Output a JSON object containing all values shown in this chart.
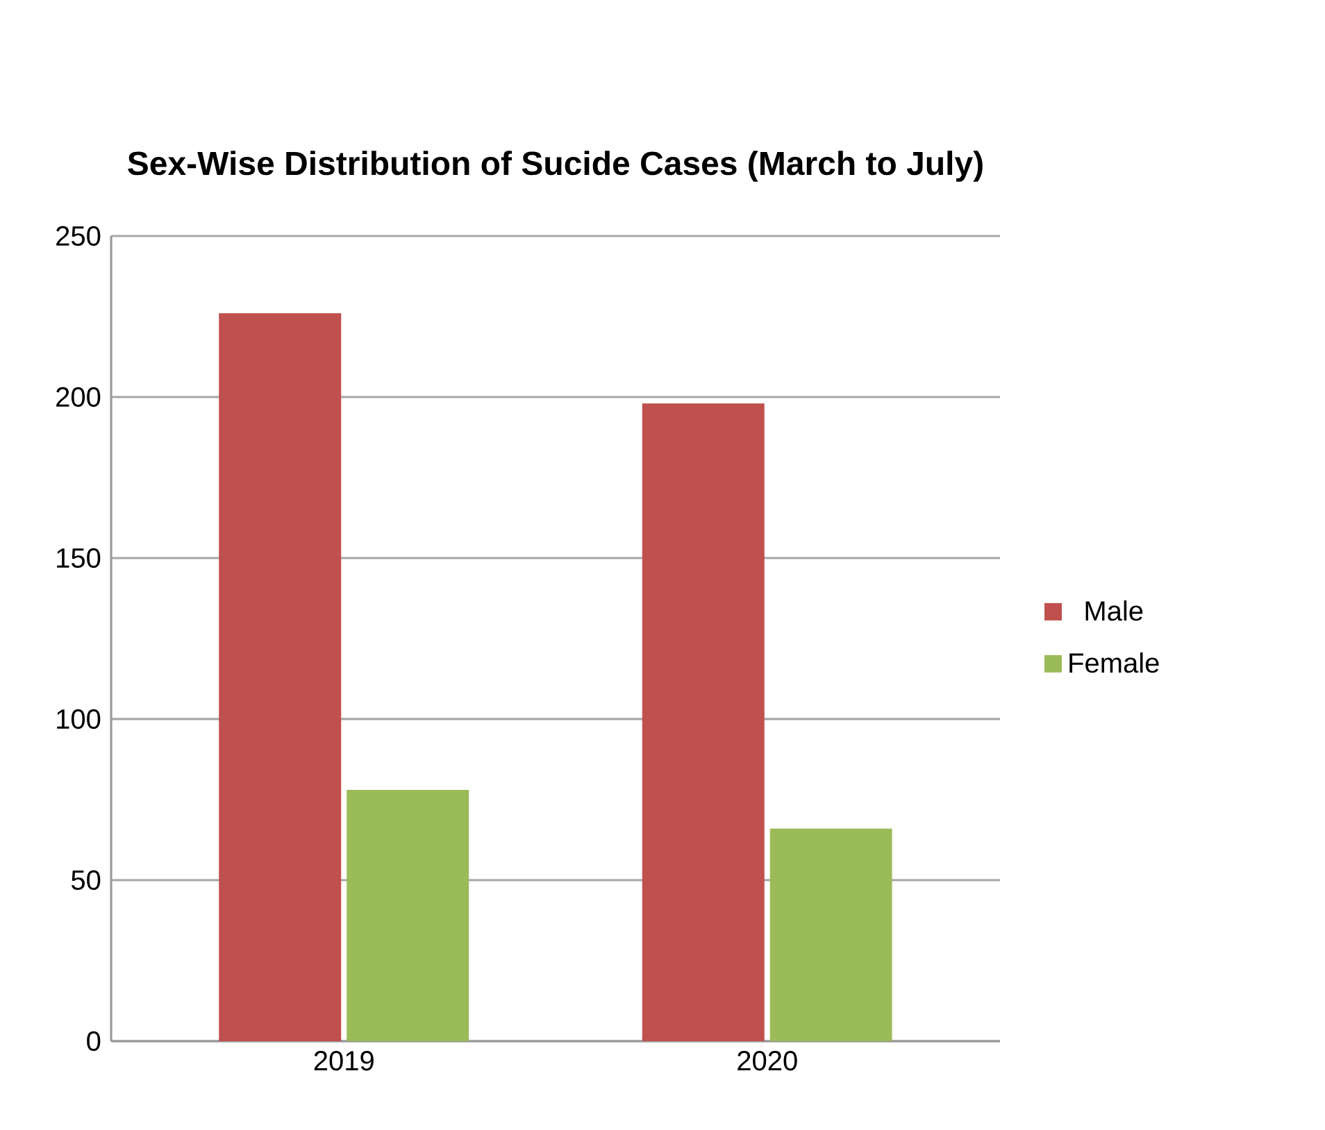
{
  "chart_data": {
    "type": "bar",
    "title": "Sex-Wise Distribution of Sucide Cases (March to July)",
    "categories": [
      "2019",
      "2020"
    ],
    "series": [
      {
        "name": "Male",
        "color": "#c0504d",
        "values": [
          226,
          198
        ]
      },
      {
        "name": "Female",
        "color": "#9bbb59",
        "values": [
          78,
          66
        ]
      }
    ],
    "ylim": [
      0,
      250
    ],
    "yticks": [
      0,
      50,
      100,
      150,
      200,
      250
    ],
    "grid": "y",
    "legend": "right"
  }
}
